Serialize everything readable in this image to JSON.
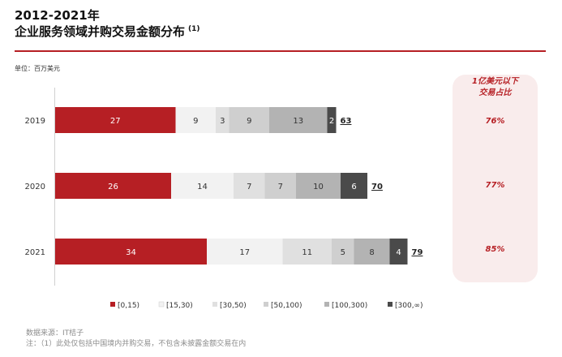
{
  "header": {
    "title_line1": "2012-2021年",
    "title_line2": "企业服务领域并购交易金额分布",
    "title_note": "(1)",
    "unit": "单位：百万美元"
  },
  "side_panel": {
    "title_line1": "1亿美元以下",
    "title_line2": "交易占比",
    "values": [
      "76%",
      "77%",
      "85%"
    ]
  },
  "footer": {
    "source": "数据来源：IT桔子",
    "note": "注：（1）此处仅包括中国境内并购交易，不包含未披露金额交易在内"
  },
  "colors": {
    "accent": "#b61f24"
  },
  "chart_data": {
    "type": "bar",
    "orientation": "horizontal",
    "stacked": true,
    "categories": [
      "2019",
      "2020",
      "2021"
    ],
    "series": [
      {
        "name": "[0,15)",
        "color": "#b61f24",
        "values": [
          27,
          26,
          34
        ]
      },
      {
        "name": "[15,30)",
        "color": "#f2f2f2",
        "values": [
          9,
          14,
          17
        ]
      },
      {
        "name": "[30,50)",
        "color": "#e0e0e0",
        "values": [
          3,
          7,
          11
        ]
      },
      {
        "name": "[50,100)",
        "color": "#cfcfcf",
        "values": [
          9,
          7,
          5
        ]
      },
      {
        "name": "[100,300)",
        "color": "#b3b3b3",
        "values": [
          13,
          10,
          8
        ]
      },
      {
        "name": "[300,∞)",
        "color": "#4a4a4a",
        "values": [
          2,
          6,
          4
        ]
      }
    ],
    "totals": [
      63,
      70,
      79
    ],
    "legend_position": "bottom",
    "grid": false
  }
}
